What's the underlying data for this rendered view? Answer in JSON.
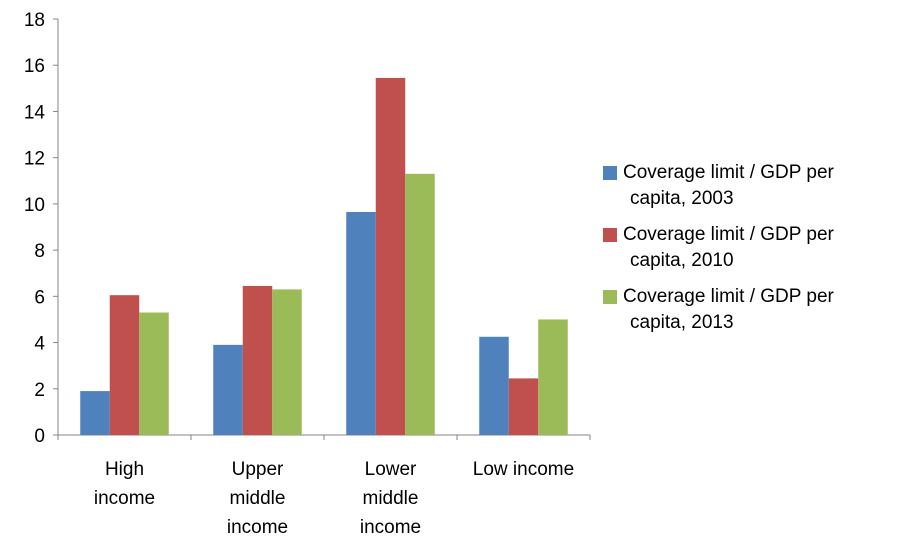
{
  "chart_data": {
    "type": "bar",
    "categories": [
      [
        "High",
        "income"
      ],
      [
        "Upper",
        "middle",
        "income"
      ],
      [
        "Lower",
        "middle",
        "income"
      ],
      [
        "Low income"
      ]
    ],
    "series": [
      {
        "name": "Coverage limit / GDP per capita, 2003",
        "legend_lines": [
          "Coverage limit / GDP per",
          "capita, 2003"
        ],
        "color": "#4F81BD",
        "values": [
          1.9,
          3.9,
          9.65,
          4.25
        ]
      },
      {
        "name": "Coverage limit / GDP per capita, 2010",
        "legend_lines": [
          "Coverage limit / GDP per",
          "capita, 2010"
        ],
        "color": "#C0504D",
        "values": [
          6.05,
          6.45,
          15.45,
          2.45
        ]
      },
      {
        "name": "Coverage limit / GDP per capita, 2013",
        "legend_lines": [
          "Coverage limit / GDP per",
          "capita, 2013"
        ],
        "color": "#9BBB59",
        "values": [
          5.3,
          6.3,
          11.3,
          5.0
        ]
      }
    ],
    "ylim": [
      0,
      18
    ],
    "yticks": [
      0,
      2,
      4,
      6,
      8,
      10,
      12,
      14,
      16,
      18
    ],
    "grid": false,
    "legend_position": "right"
  }
}
